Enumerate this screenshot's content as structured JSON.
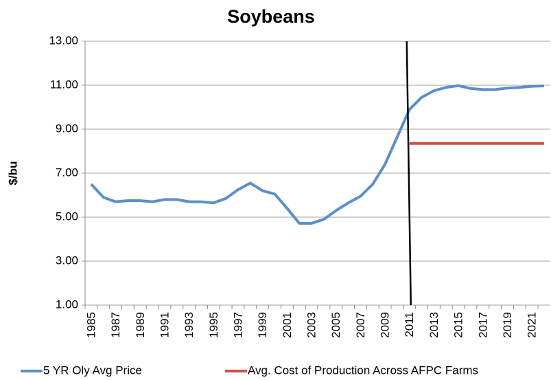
{
  "chart_data": {
    "type": "line",
    "title": "Soybeans",
    "y_label": "$/bu",
    "categories": [
      1985,
      null,
      1987,
      null,
      1989,
      null,
      1991,
      null,
      1993,
      null,
      1995,
      null,
      1997,
      null,
      1999,
      null,
      2001,
      null,
      2003,
      null,
      2005,
      null,
      2007,
      null,
      2009,
      null,
      2011,
      null,
      2013,
      null,
      2015,
      null,
      2017,
      null,
      2019,
      null,
      2021,
      null
    ],
    "series": [
      {
        "name": "5 YR Oly Avg Price",
        "color": "#5b8fcc",
        "values": [
          6.5,
          5.9,
          5.7,
          5.75,
          5.75,
          5.7,
          5.8,
          5.8,
          5.7,
          5.7,
          5.65,
          5.85,
          6.25,
          6.55,
          6.2,
          6.05,
          5.4,
          4.72,
          4.72,
          4.9,
          5.3,
          5.65,
          5.95,
          6.5,
          7.4,
          8.65,
          9.9,
          10.45,
          10.75,
          10.9,
          10.98,
          10.85,
          10.8,
          10.8,
          10.87,
          10.9,
          10.95,
          10.97
        ]
      },
      {
        "name": "Avg. Cost of Production Across AFPC Farms",
        "color": "#c9504b",
        "values": [
          null,
          null,
          null,
          null,
          null,
          null,
          null,
          null,
          null,
          null,
          null,
          null,
          null,
          null,
          null,
          null,
          null,
          null,
          null,
          null,
          null,
          null,
          null,
          null,
          null,
          null,
          8.35,
          8.35,
          8.35,
          8.35,
          8.35,
          8.35,
          8.35,
          8.35,
          8.35,
          8.35,
          8.35,
          8.35
        ]
      }
    ],
    "ylim": [
      1,
      13
    ],
    "yticks": [
      {
        "value": 1,
        "label": "1.00"
      },
      {
        "value": 3,
        "label": "3.00"
      },
      {
        "value": 5,
        "label": "5.00"
      },
      {
        "value": 7,
        "label": "7.00"
      },
      {
        "value": 9,
        "label": "9.00"
      },
      {
        "value": 11,
        "label": "11.00"
      },
      {
        "value": 13,
        "label": "13.00"
      }
    ],
    "grid": true
  }
}
